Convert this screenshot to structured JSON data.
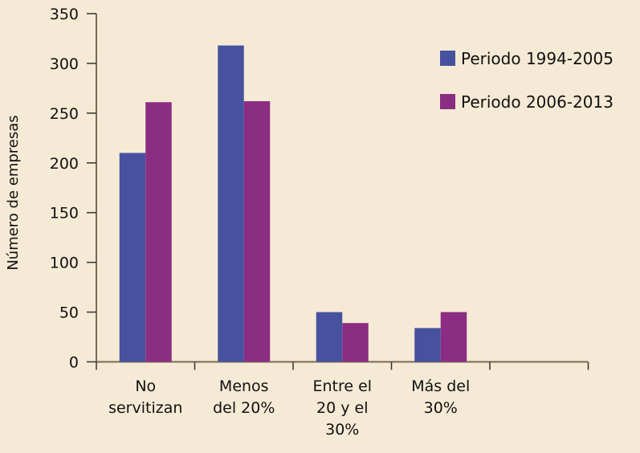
{
  "chart_data": {
    "type": "bar",
    "title": "",
    "xlabel": "",
    "ylabel": "Número de empresas",
    "ylim": [
      0,
      350
    ],
    "yticks": [
      0,
      50,
      100,
      150,
      200,
      250,
      300,
      350
    ],
    "categories": [
      [
        "No",
        "servitizan"
      ],
      [
        "Menos",
        "del 20%"
      ],
      [
        "Entre el",
        "20 y el",
        "30%"
      ],
      [
        "Más del",
        "30%"
      ]
    ],
    "series": [
      {
        "name": "Periodo 1994-2005",
        "color": "#46529f",
        "values": [
          210,
          318,
          50,
          34
        ]
      },
      {
        "name": "Periodo 2006-2013",
        "color": "#8b2d82",
        "values": [
          261,
          262,
          39,
          50
        ]
      }
    ],
    "legend": "top-right",
    "grid": false
  }
}
